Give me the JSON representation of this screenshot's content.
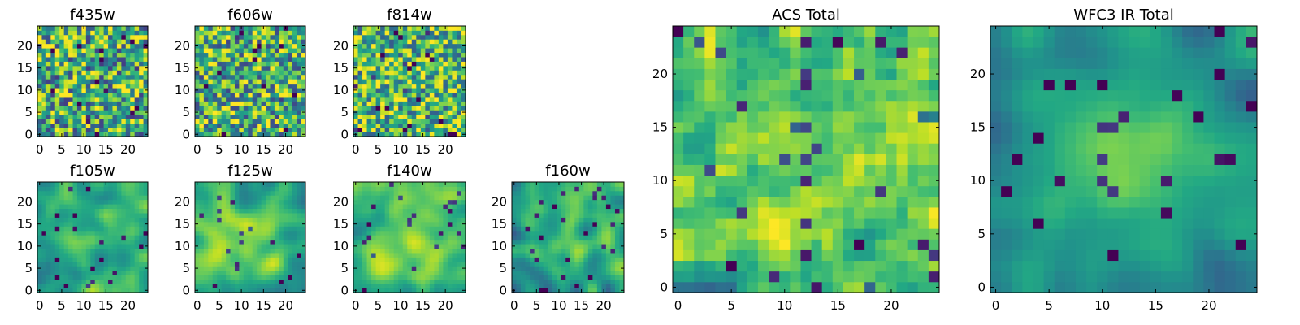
{
  "figure": {
    "description_colormap": "viridis"
  },
  "chart_data": [
    {
      "type": "heatmap",
      "title": "f435w",
      "grid_size": 25,
      "xticks": [
        0,
        5,
        10,
        15,
        20
      ],
      "yticks": [
        0,
        5,
        10,
        15,
        20
      ],
      "xlim": [
        -0.5,
        24.5
      ],
      "ylim": [
        -0.5,
        24.5
      ],
      "seed": 11,
      "smoothness": 0.05,
      "mean": 0.62,
      "noise": 0.28,
      "grid": false
    },
    {
      "type": "heatmap",
      "title": "f606w",
      "grid_size": 25,
      "xticks": [
        0,
        5,
        10,
        15,
        20
      ],
      "yticks": [
        0,
        5,
        10,
        15,
        20
      ],
      "xlim": [
        -0.5,
        24.5
      ],
      "ylim": [
        -0.5,
        24.5
      ],
      "seed": 23,
      "smoothness": 0.05,
      "mean": 0.64,
      "noise": 0.27,
      "grid": false
    },
    {
      "type": "heatmap",
      "title": "f814w",
      "grid_size": 25,
      "xticks": [
        0,
        5,
        10,
        15,
        20
      ],
      "yticks": [
        0,
        5,
        10,
        15,
        20
      ],
      "xlim": [
        -0.5,
        24.5
      ],
      "ylim": [
        -0.5,
        24.5
      ],
      "seed": 37,
      "smoothness": 0.08,
      "mean": 0.68,
      "noise": 0.25,
      "grid": false
    },
    {
      "type": "heatmap",
      "title": "f105w",
      "grid_size": 25,
      "xticks": [
        0,
        5,
        10,
        15,
        20
      ],
      "yticks": [
        0,
        5,
        10,
        15,
        20
      ],
      "xlim": [
        -0.5,
        24.5
      ],
      "ylim": [
        -0.5,
        24.5
      ],
      "seed": 41,
      "smoothness": 0.45,
      "mean": 0.66,
      "noise": 0.16,
      "center_boost": 0.15,
      "grid": false
    },
    {
      "type": "heatmap",
      "title": "f125w",
      "grid_size": 25,
      "xticks": [
        0,
        5,
        10,
        15,
        20
      ],
      "yticks": [
        0,
        5,
        10,
        15,
        20
      ],
      "xlim": [
        -0.5,
        24.5
      ],
      "ylim": [
        -0.5,
        24.5
      ],
      "seed": 53,
      "smoothness": 0.45,
      "mean": 0.68,
      "noise": 0.15,
      "center_boost": 0.15,
      "grid": false
    },
    {
      "type": "heatmap",
      "title": "f140w",
      "grid_size": 25,
      "xticks": [
        0,
        5,
        10,
        15,
        20
      ],
      "yticks": [
        0,
        5,
        10,
        15,
        20
      ],
      "xlim": [
        -0.5,
        24.5
      ],
      "ylim": [
        -0.5,
        24.5
      ],
      "seed": 67,
      "smoothness": 0.45,
      "mean": 0.7,
      "noise": 0.15,
      "center_boost": 0.12,
      "grid": false
    },
    {
      "type": "heatmap",
      "title": "f160w",
      "grid_size": 25,
      "xticks": [
        0,
        5,
        10,
        15,
        20
      ],
      "yticks": [
        0,
        5,
        10,
        15,
        20
      ],
      "xlim": [
        -0.5,
        24.5
      ],
      "ylim": [
        -0.5,
        24.5
      ],
      "seed": 79,
      "smoothness": 0.45,
      "mean": 0.62,
      "noise": 0.18,
      "center_boost": 0.2,
      "grid": false
    },
    {
      "type": "heatmap",
      "title": "ACS Total",
      "grid_size": 25,
      "xticks": [
        0,
        5,
        10,
        15,
        20
      ],
      "yticks": [
        0,
        5,
        10,
        15,
        20
      ],
      "xlim": [
        -0.5,
        24.5
      ],
      "ylim": [
        -0.5,
        24.5
      ],
      "seed": 97,
      "smoothness": 0.1,
      "mean": 0.68,
      "noise": 0.22,
      "grid": false
    },
    {
      "type": "heatmap",
      "title": "WFC3 IR Total",
      "grid_size": 25,
      "xticks": [
        0,
        5,
        10,
        15,
        20
      ],
      "yticks": [
        0,
        5,
        10,
        15,
        20
      ],
      "xlim": [
        -0.5,
        24.5
      ],
      "ylim": [
        -0.5,
        24.5
      ],
      "seed": 113,
      "smoothness": 0.55,
      "mean": 0.58,
      "noise": 0.12,
      "center_boost": 0.3,
      "grid": false
    }
  ]
}
